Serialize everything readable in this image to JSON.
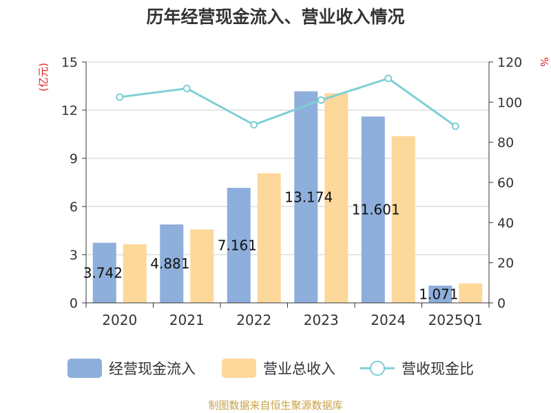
{
  "chart_data": {
    "type": "bar",
    "title": "历年经营现金流入、营业收入情况",
    "categories": [
      "2020",
      "2021",
      "2022",
      "2023",
      "2024",
      "2025Q1"
    ],
    "y_left": {
      "unit_label": "(亿元)",
      "ylim": [
        0,
        15
      ],
      "ticks": [
        "0",
        "3",
        "6",
        "9",
        "12",
        "15"
      ]
    },
    "y_right": {
      "unit_label": "%",
      "ylim": [
        0,
        120
      ],
      "ticks": [
        "0",
        "20",
        "40",
        "60",
        "80",
        "100",
        "120"
      ]
    },
    "series": [
      {
        "name": "经营现金流入",
        "type": "bar",
        "axis": "left",
        "color": "#8eaedb",
        "values": [
          3.742,
          4.881,
          7.161,
          13.174,
          11.601,
          1.071
        ],
        "labels": [
          "3.742",
          "4.881",
          "7.161",
          "13.174",
          "11.601",
          "1.071"
        ]
      },
      {
        "name": "营业总收入",
        "type": "bar",
        "axis": "left",
        "color": "#fdd89b",
        "values": [
          3.65,
          4.57,
          8.07,
          13.05,
          10.38,
          1.21
        ]
      },
      {
        "name": "营收现金比",
        "type": "line",
        "axis": "right",
        "color": "#7ecfd4",
        "values": [
          102.5,
          106.8,
          88.7,
          101.0,
          111.8,
          88.0
        ]
      }
    ],
    "grid": true,
    "legend_position": "bottom"
  },
  "source": "制图数据来自恒生聚源数据库"
}
